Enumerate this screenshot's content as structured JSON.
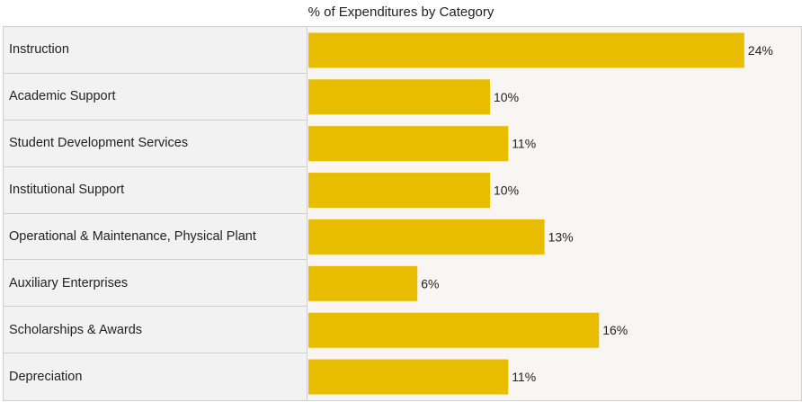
{
  "chart_data": {
    "type": "bar",
    "orientation": "horizontal",
    "title": "% of Expenditures by Category",
    "categories": [
      "Instruction",
      "Academic Support",
      "Student Development Services",
      "Institutional Support",
      "Operational & Maintenance, Physical Plant",
      "Auxiliary Enterprises",
      "Scholarships & Awards",
      "Depreciation"
    ],
    "values": [
      24,
      10,
      11,
      10,
      13,
      6,
      16,
      11
    ],
    "value_labels": [
      "24%",
      "10%",
      "11%",
      "10%",
      "13%",
      "6%",
      "16%",
      "11%"
    ],
    "unit": "%",
    "grid": false,
    "legend": "none"
  },
  "colors": {
    "bar": "#e8bd00",
    "label_panel": "#f2f2f2",
    "plot_background": "#f8f5f2"
  }
}
